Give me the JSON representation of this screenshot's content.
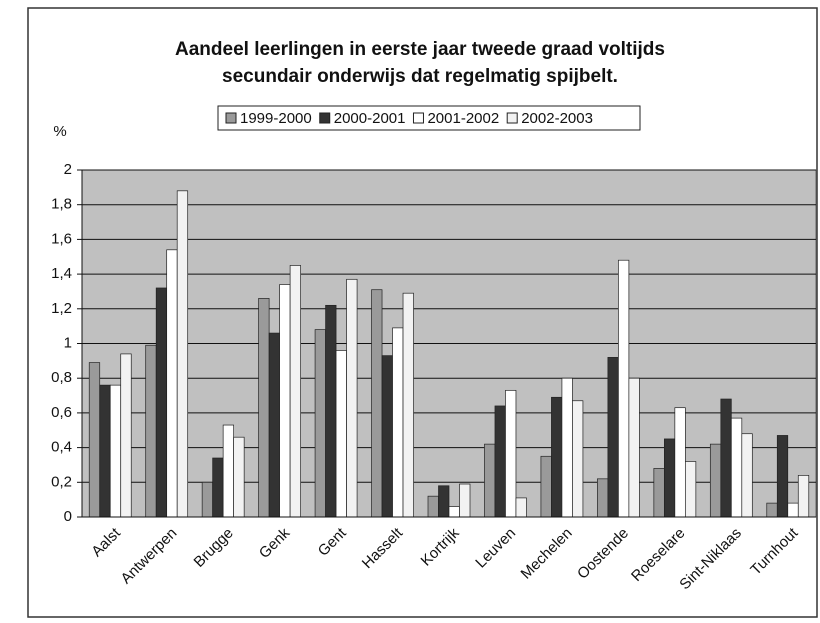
{
  "chart_data": {
    "type": "bar",
    "title": [
      "Aandeel leerlingen in eerste jaar tweede graad voltijds",
      "secundair onderwijs dat regelmatig spijbelt."
    ],
    "y_label": "%",
    "categories": [
      "Aalst",
      "Antwerpen",
      "Brugge",
      "Genk",
      "Gent",
      "Hasselt",
      "Kortrijk",
      "Leuven",
      "Mechelen",
      "Oostende",
      "Roeselare",
      "Sint-Niklaas",
      "Turnhout"
    ],
    "series": [
      {
        "name": "1999-2000",
        "color": "#9a9a9a",
        "values": [
          0.89,
          0.99,
          0.2,
          1.26,
          1.08,
          1.31,
          0.12,
          0.42,
          0.35,
          0.22,
          0.28,
          0.42,
          0.08
        ]
      },
      {
        "name": "2000-2001",
        "color": "#333333",
        "values": [
          0.76,
          1.32,
          0.34,
          1.06,
          1.22,
          0.93,
          0.18,
          0.64,
          0.69,
          0.92,
          0.45,
          0.68,
          0.47
        ]
      },
      {
        "name": "2001-2002",
        "color": "#ffffff",
        "values": [
          0.76,
          1.54,
          0.53,
          1.34,
          0.96,
          1.09,
          0.06,
          0.73,
          0.8,
          1.48,
          0.63,
          0.57,
          0.08
        ]
      },
      {
        "name": "2002-2003",
        "color": "#f2f2f2",
        "values": [
          0.94,
          1.88,
          0.46,
          1.45,
          1.37,
          1.29,
          0.19,
          0.11,
          0.67,
          0.8,
          0.32,
          0.48,
          0.24
        ]
      }
    ],
    "ylim": [
      0,
      2
    ],
    "yticks": [
      0,
      {
        "value": 0.2,
        "label": "0,2"
      },
      {
        "value": 0.4,
        "label": "0,4"
      },
      {
        "value": 0.6,
        "label": "0,6"
      },
      {
        "value": 0.8,
        "label": "0,8"
      },
      1,
      {
        "value": 1.2,
        "label": "1,2"
      },
      {
        "value": 1.4,
        "label": "1,4"
      },
      {
        "value": 1.6,
        "label": "1,6"
      },
      {
        "value": 1.8,
        "label": "1,8"
      },
      2
    ],
    "grid": true,
    "plot_background": "#c0c0c0"
  }
}
